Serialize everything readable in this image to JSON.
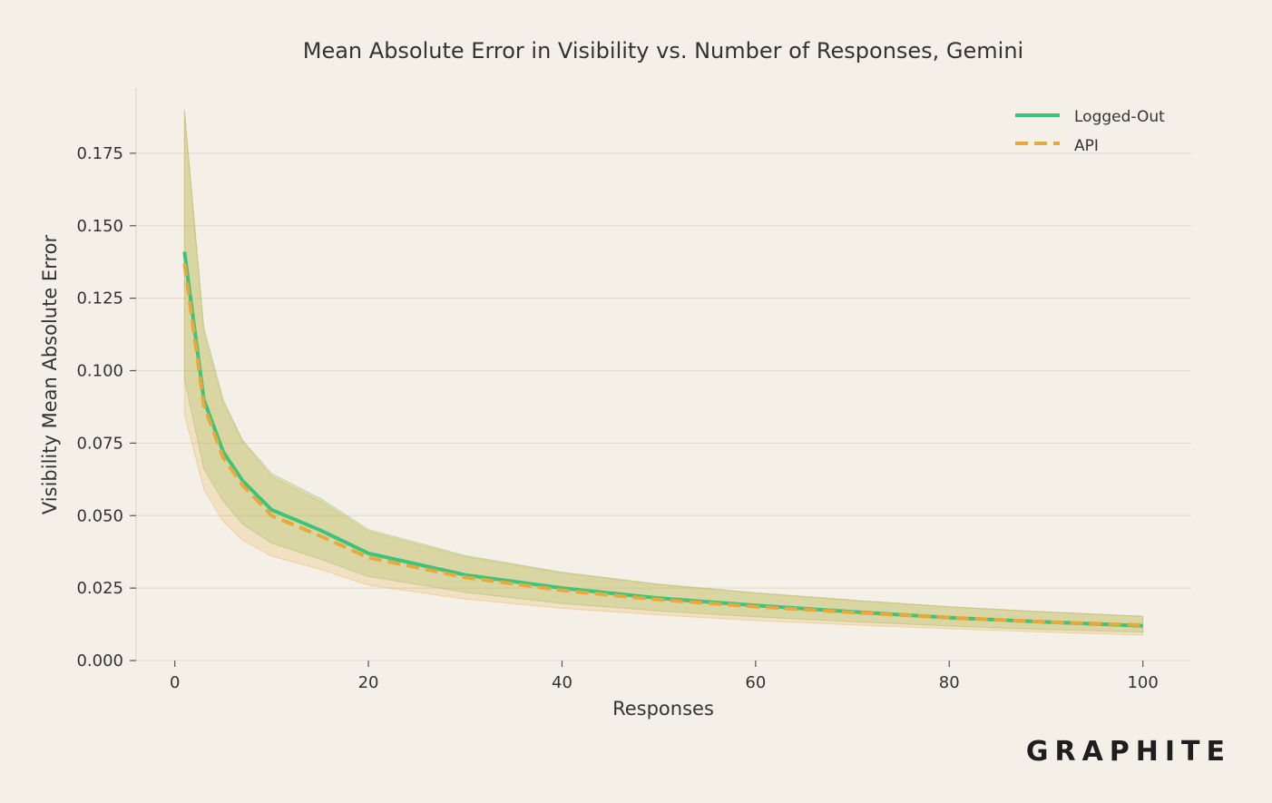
{
  "chart_data": {
    "type": "line",
    "title": "Mean Absolute Error in Visibility vs. Number of Responses, Gemini",
    "xlabel": "Responses",
    "ylabel": "Visibility Mean Absolute Error",
    "xlim": [
      -4,
      105
    ],
    "ylim": [
      0,
      0.1975
    ],
    "xticks": [
      0,
      20,
      40,
      60,
      80,
      100
    ],
    "yticks": [
      0,
      0.025,
      0.05,
      0.075,
      0.1,
      0.125,
      0.15,
      0.175
    ],
    "xtick_labels": [
      "0",
      "20",
      "40",
      "60",
      "80",
      "100"
    ],
    "ytick_labels": [
      "0.000",
      "0.025",
      "0.050",
      "0.075",
      "0.100",
      "0.125",
      "0.150",
      "0.175"
    ],
    "grid": "horizontal",
    "legend_position": "top-right",
    "x": [
      1,
      3,
      5,
      7,
      10,
      15,
      20,
      30,
      40,
      50,
      60,
      70,
      80,
      90,
      100
    ],
    "series": [
      {
        "name": "Logged-Out",
        "color": "#3cc47c",
        "line_style": "solid",
        "values": [
          0.141,
          0.09,
          0.072,
          0.062,
          0.052,
          0.045,
          0.037,
          0.0295,
          0.025,
          0.0215,
          0.019,
          0.0168,
          0.0148,
          0.0133,
          0.012
        ],
        "band_lower": [
          0.097,
          0.066,
          0.055,
          0.047,
          0.0405,
          0.035,
          0.029,
          0.0235,
          0.0197,
          0.0171,
          0.0151,
          0.0134,
          0.0119,
          0.0107,
          0.0098
        ],
        "band_upper": [
          0.19,
          0.115,
          0.09,
          0.076,
          0.0645,
          0.056,
          0.0452,
          0.0362,
          0.0305,
          0.0264,
          0.0234,
          0.0209,
          0.0186,
          0.0168,
          0.0153
        ]
      },
      {
        "name": "API",
        "color": "#e8a93c",
        "line_style": "dashed",
        "values": [
          0.137,
          0.088,
          0.07,
          0.0605,
          0.05,
          0.043,
          0.0355,
          0.0287,
          0.0242,
          0.021,
          0.0186,
          0.0166,
          0.0148,
          0.0133,
          0.0122
        ],
        "band_lower": [
          0.085,
          0.059,
          0.048,
          0.0415,
          0.036,
          0.0315,
          0.026,
          0.0212,
          0.018,
          0.0157,
          0.0138,
          0.0123,
          0.011,
          0.0098,
          0.0088
        ],
        "band_upper": [
          0.189,
          0.113,
          0.089,
          0.0755,
          0.0635,
          0.055,
          0.0445,
          0.0358,
          0.0302,
          0.0262,
          0.0232,
          0.0207,
          0.0185,
          0.0167,
          0.0152
        ]
      }
    ]
  },
  "brand": {
    "text": "GRAPHITE"
  }
}
